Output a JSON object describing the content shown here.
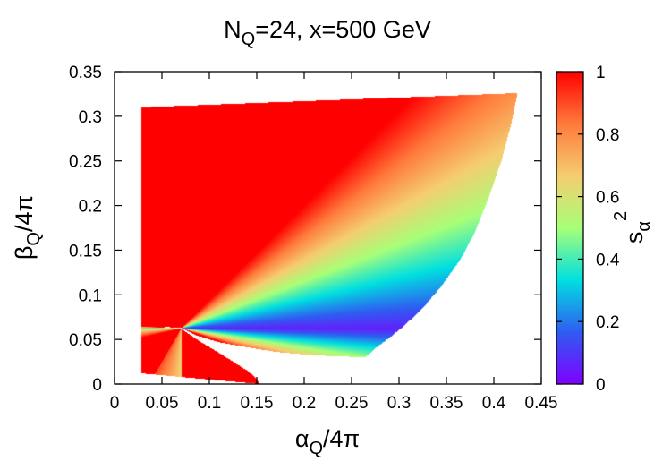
{
  "chart_data": {
    "type": "heatmap",
    "title": "N_Q=24, x=500 GeV",
    "title_parts": {
      "main": "N",
      "sub": "Q",
      "rest": "=24, x=500 GeV"
    },
    "xlabel_parts": {
      "main": "α",
      "sub": "Q",
      "rest": "/4π"
    },
    "ylabel_parts": {
      "main": "β",
      "sub": "Q",
      "rest": "/4π"
    },
    "colorbar_label_parts": {
      "main": "s",
      "sub": "α",
      "sup": "2"
    },
    "xlim": [
      0,
      0.45
    ],
    "ylim": [
      0,
      0.35
    ],
    "zlim": [
      0,
      1
    ],
    "x_ticks": [
      {
        "v": 0,
        "label": "0"
      },
      {
        "v": 0.05,
        "label": "0.05"
      },
      {
        "v": 0.1,
        "label": "0.1"
      },
      {
        "v": 0.15,
        "label": "0.15"
      },
      {
        "v": 0.2,
        "label": "0.2"
      },
      {
        "v": 0.25,
        "label": "0.25"
      },
      {
        "v": 0.3,
        "label": "0.3"
      },
      {
        "v": 0.35,
        "label": "0.35"
      },
      {
        "v": 0.4,
        "label": "0.4"
      },
      {
        "v": 0.45,
        "label": "0.45"
      }
    ],
    "y_ticks": [
      {
        "v": 0,
        "label": "0"
      },
      {
        "v": 0.05,
        "label": "0.05"
      },
      {
        "v": 0.1,
        "label": "0.1"
      },
      {
        "v": 0.15,
        "label": "0.15"
      },
      {
        "v": 0.2,
        "label": "0.2"
      },
      {
        "v": 0.25,
        "label": "0.25"
      },
      {
        "v": 0.3,
        "label": "0.3"
      },
      {
        "v": 0.35,
        "label": "0.35"
      }
    ],
    "z_ticks": [
      {
        "v": 0,
        "label": "0"
      },
      {
        "v": 0.2,
        "label": "0.2"
      },
      {
        "v": 0.4,
        "label": "0.4"
      },
      {
        "v": 0.6,
        "label": "0.6"
      },
      {
        "v": 0.8,
        "label": "0.8"
      },
      {
        "v": 1,
        "label": "1"
      }
    ],
    "palette": "rainbow (violet → blue → cyan → green → yellow → orange → red)",
    "palette_stops": [
      "#7f00ff",
      "#2f5cf2",
      "#00e0e0",
      "#a8ff78",
      "#f5cd70",
      "#ff7a3c",
      "#ff0000"
    ],
    "grid": false,
    "legend": "colorbar-right",
    "upper_region": {
      "left_edge_alpha": 0.028,
      "top_boundary": [
        [
          0.028,
          0.31
        ],
        [
          0.05,
          0.311
        ],
        [
          0.1,
          0.313
        ],
        [
          0.15,
          0.315
        ],
        [
          0.2,
          0.317
        ],
        [
          0.25,
          0.319
        ],
        [
          0.3,
          0.321
        ],
        [
          0.35,
          0.323
        ],
        [
          0.4,
          0.325
        ],
        [
          0.425,
          0.326
        ]
      ],
      "right_boundary": [
        [
          0.425,
          0.326
        ],
        [
          0.418,
          0.29
        ],
        [
          0.408,
          0.25
        ],
        [
          0.395,
          0.21
        ],
        [
          0.38,
          0.17
        ],
        [
          0.365,
          0.14
        ],
        [
          0.345,
          0.11
        ],
        [
          0.325,
          0.085
        ],
        [
          0.305,
          0.065
        ],
        [
          0.29,
          0.052
        ],
        [
          0.275,
          0.04
        ],
        [
          0.265,
          0.03
        ]
      ],
      "bottom_boundary": [
        [
          0.265,
          0.03
        ],
        [
          0.23,
          0.031
        ],
        [
          0.2,
          0.033
        ],
        [
          0.17,
          0.036
        ],
        [
          0.14,
          0.041
        ],
        [
          0.11,
          0.047
        ],
        [
          0.085,
          0.055
        ],
        [
          0.07,
          0.063
        ],
        [
          0.055,
          0.064
        ],
        [
          0.04,
          0.065
        ],
        [
          0.028,
          0.066
        ]
      ]
    },
    "lower_region": {
      "left_edge_alpha": 0.028,
      "top_point": [
        0.07,
        0.062
      ],
      "bottom_boundary_beta": 0.0,
      "right_boundary": [
        [
          0.07,
          0.062
        ],
        [
          0.09,
          0.048
        ],
        [
          0.11,
          0.035
        ],
        [
          0.125,
          0.025
        ],
        [
          0.14,
          0.015
        ],
        [
          0.148,
          0.008
        ],
        [
          0.153,
          0.0
        ]
      ],
      "left_boundary": [
        [
          0.028,
          0.012
        ],
        [
          0.03,
          0.045
        ],
        [
          0.028,
          0.055
        ]
      ]
    },
    "focus_point": [
      0.07,
      0.063
    ]
  }
}
